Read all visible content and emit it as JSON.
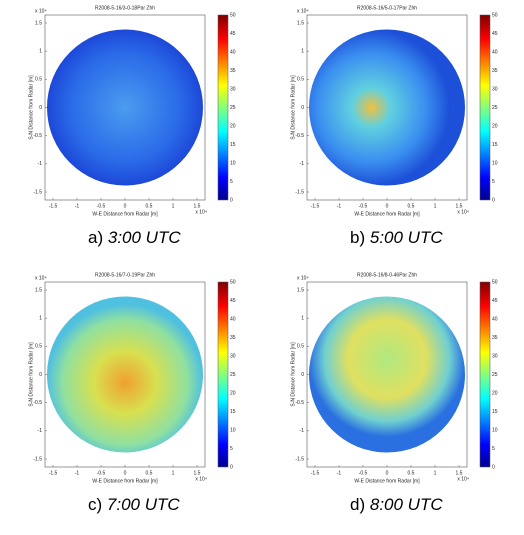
{
  "panels": [
    {
      "title": "R2008-5-16/3-0-18Par Zhh",
      "letter": "a)",
      "time": "3:00 UTC"
    },
    {
      "title": "R2008-5-16/5-0-17Par Zhh",
      "letter": "b)",
      "time": "5:00 UTC"
    },
    {
      "title": "R2008-5-16/7-0-19Par Zhh",
      "letter": "c)",
      "time": "7:00 UTC"
    },
    {
      "title": "R2008-5-16/8-0-46Par Zhh",
      "letter": "d)",
      "time": "8:00 UTC"
    }
  ],
  "axes": {
    "xlabel": "W-E Distance from Radar [m]",
    "ylabel": "S-N Distance from Radar [m]",
    "xticks": [
      "-1.5",
      "-1",
      "-0.5",
      "0",
      "0.5",
      "1",
      "1.5"
    ],
    "yticks": [
      "-1.5",
      "-1",
      "-0.5",
      "0",
      "0.5",
      "1",
      "1.5"
    ],
    "exponent": "x 10⁴",
    "colorbar_ticks": [
      "0",
      "5",
      "10",
      "15",
      "20",
      "25",
      "30",
      "35",
      "40",
      "45",
      "50"
    ]
  }
}
